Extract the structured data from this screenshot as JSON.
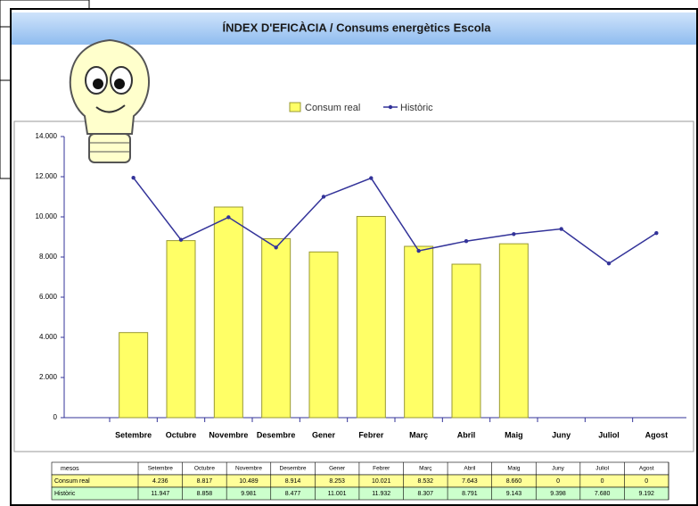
{
  "chart_data": {
    "type": "bar_line",
    "title": "ÍNDEX D'EFICÀCIA / Consums energètics Escola",
    "categories": [
      "Setembre",
      "Octubre",
      "Novembre",
      "Desembre",
      "Gener",
      "Febrer",
      "Març",
      "Abril",
      "Maig",
      "Juny",
      "Juliol",
      "Agost"
    ],
    "series": [
      {
        "name": "Consum real",
        "type": "bar",
        "color": "#ffff66",
        "values": [
          4236,
          8817,
          10489,
          8914,
          8253,
          10021,
          8532,
          7643,
          8660,
          0,
          0,
          0
        ],
        "value_labels": [
          "4.236",
          "8.817",
          "10.489",
          "8.914",
          "8.253",
          "10.021",
          "8.532",
          "7.643",
          "8.660",
          "0",
          "0",
          "0"
        ]
      },
      {
        "name": "Històric",
        "type": "line",
        "color": "#333399",
        "values": [
          11947,
          8858,
          9981,
          8477,
          11001,
          11932,
          8307,
          8791,
          9143,
          9398,
          7680,
          9192
        ],
        "value_labels": [
          "11.947",
          "8.858",
          "9.981",
          "8.477",
          "11.001",
          "11.932",
          "8.307",
          "8.791",
          "9.143",
          "9.398",
          "7.680",
          "9.192"
        ]
      }
    ],
    "ylim": [
      0,
      14000
    ],
    "yticks": [
      0,
      {
        "value": 2000,
        "label": "2.000"
      },
      {
        "value": 4000,
        "label": "4.000"
      },
      {
        "value": 6000,
        "label": "6.000"
      },
      {
        "value": 8000,
        "label": "8.000"
      },
      {
        "value": 10000,
        "label": "10.000"
      },
      {
        "value": 12000,
        "label": "12.000"
      },
      {
        "value": 14000,
        "label": "14.000"
      }
    ],
    "legend": "top",
    "table_header": "mesos"
  }
}
